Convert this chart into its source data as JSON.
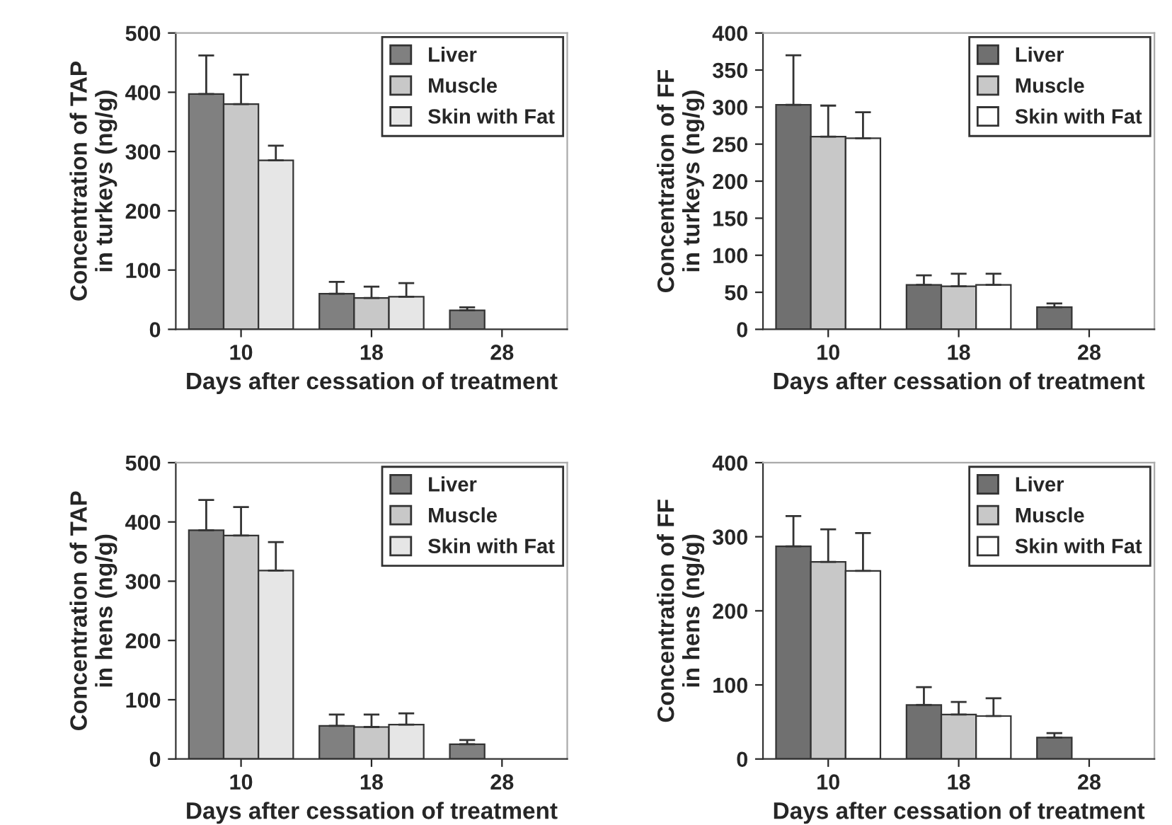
{
  "chart_data": [
    {
      "type": "bar",
      "xlabel": "Days after cessation of treatment",
      "ylabel": "Concentration of TAP\nin turkeys (ng/g)",
      "categories": [
        "10",
        "18",
        "28"
      ],
      "ylim": [
        0,
        500
      ],
      "yticks": [
        0,
        100,
        200,
        300,
        400,
        500
      ],
      "legend": "top right",
      "grid": false,
      "series": [
        {
          "name": "Liver",
          "color": "#808080",
          "values": [
            397,
            60,
            32
          ],
          "errors": [
            [
              397,
              462
            ],
            [
              60,
              80
            ],
            [
              32,
              37
            ]
          ]
        },
        {
          "name": "Muscle",
          "color": "#c8c8c8",
          "values": [
            380,
            53,
            null
          ],
          "errors": [
            [
              380,
              430
            ],
            [
              53,
              72
            ],
            null
          ]
        },
        {
          "name": "Skin with Fat",
          "color": "#e6e6e6",
          "values": [
            285,
            55,
            null
          ],
          "errors": [
            [
              285,
              310
            ],
            [
              55,
              78
            ],
            null
          ]
        }
      ]
    },
    {
      "type": "bar",
      "xlabel": "Days after cessation of treatment",
      "ylabel": "Concentration of FF\nin turkeys (ng/g)",
      "categories": [
        "10",
        "18",
        "28"
      ],
      "ylim": [
        0,
        400
      ],
      "yticks": [
        0,
        50,
        100,
        150,
        200,
        250,
        300,
        350,
        400
      ],
      "legend": "top right",
      "grid": false,
      "series": [
        {
          "name": "Liver",
          "color": "#707070",
          "values": [
            303,
            60,
            30
          ],
          "errors": [
            [
              303,
              370
            ],
            [
              60,
              73
            ],
            [
              30,
              35
            ]
          ]
        },
        {
          "name": "Muscle",
          "color": "#c8c8c8",
          "values": [
            260,
            58,
            null
          ],
          "errors": [
            [
              260,
              302
            ],
            [
              58,
              75
            ],
            null
          ]
        },
        {
          "name": "Skin with Fat",
          "color": "#ffffff",
          "values": [
            258,
            60,
            null
          ],
          "errors": [
            [
              258,
              293
            ],
            [
              60,
              75
            ],
            null
          ]
        }
      ]
    },
    {
      "type": "bar",
      "xlabel": "Days after cessation of treatment",
      "ylabel": "Concentration of TAP\nin hens (ng/g)",
      "categories": [
        "10",
        "18",
        "28"
      ],
      "ylim": [
        0,
        500
      ],
      "yticks": [
        0,
        100,
        200,
        300,
        400,
        500
      ],
      "legend": "top right",
      "grid": false,
      "series": [
        {
          "name": "Liver",
          "color": "#808080",
          "values": [
            386,
            56,
            25
          ],
          "errors": [
            [
              386,
              437
            ],
            [
              56,
              75
            ],
            [
              25,
              32
            ]
          ]
        },
        {
          "name": "Muscle",
          "color": "#c8c8c8",
          "values": [
            377,
            54,
            null
          ],
          "errors": [
            [
              377,
              425
            ],
            [
              54,
              75
            ],
            null
          ]
        },
        {
          "name": "Skin with Fat",
          "color": "#e6e6e6",
          "values": [
            318,
            58,
            null
          ],
          "errors": [
            [
              318,
              366
            ],
            [
              58,
              77
            ],
            null
          ]
        }
      ]
    },
    {
      "type": "bar",
      "xlabel": "Days after cessation of treatment",
      "ylabel": "Concentration of FF\nin hens (ng/g)",
      "categories": [
        "10",
        "18",
        "28"
      ],
      "ylim": [
        0,
        400
      ],
      "yticks": [
        0,
        100,
        200,
        300,
        400
      ],
      "legend": "top right",
      "grid": false,
      "series": [
        {
          "name": "Liver",
          "color": "#707070",
          "values": [
            287,
            73,
            29
          ],
          "errors": [
            [
              287,
              328
            ],
            [
              73,
              97
            ],
            [
              29,
              35
            ]
          ]
        },
        {
          "name": "Muscle",
          "color": "#c8c8c8",
          "values": [
            266,
            60,
            null
          ],
          "errors": [
            [
              266,
              310
            ],
            [
              60,
              77
            ],
            null
          ]
        },
        {
          "name": "Skin with Fat",
          "color": "#ffffff",
          "values": [
            254,
            58,
            null
          ],
          "errors": [
            [
              254,
              305
            ],
            [
              58,
              82
            ],
            null
          ]
        }
      ]
    }
  ]
}
